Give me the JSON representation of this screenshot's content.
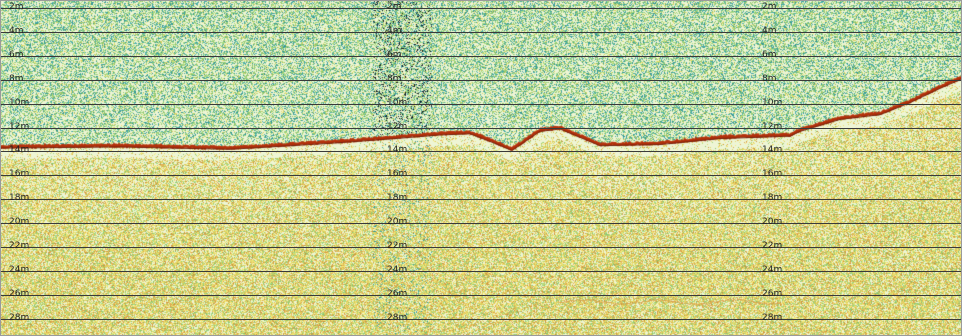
{
  "window": {
    "title": ""
  },
  "echogram": {
    "depth_unit": "m",
    "depth_labels": [
      "2m",
      "4m",
      "6m",
      "8m",
      "10m",
      "12m",
      "14m",
      "16m",
      "18m",
      "20m",
      "22m",
      "24m",
      "26m",
      "28m"
    ],
    "label_columns": 3,
    "colors": {
      "water_green": "#9bd07a",
      "water_teal": "#3fa3a0",
      "sediment_yellow": "#e6d96a",
      "sediment_orange": "#d9a24a",
      "bottom_trace": "#b5310b",
      "bottom_trace_dark": "#6e1a06",
      "gridline": "#3a3a3a",
      "background": "#eef5d5"
    },
    "bottom_profile_m": [
      [
        0,
        13.6
      ],
      [
        120,
        13.5
      ],
      [
        230,
        13.7
      ],
      [
        330,
        13.2
      ],
      [
        380,
        12.9
      ],
      [
        440,
        12.5
      ],
      [
        470,
        12.4
      ],
      [
        495,
        13.2
      ],
      [
        512,
        13.8
      ],
      [
        540,
        12.2
      ],
      [
        560,
        12.0
      ],
      [
        600,
        13.4
      ],
      [
        660,
        13.3
      ],
      [
        720,
        12.8
      ],
      [
        790,
        12.6
      ],
      [
        800,
        12.2
      ],
      [
        840,
        11.2
      ],
      [
        880,
        10.8
      ],
      [
        910,
        9.8
      ],
      [
        940,
        8.6
      ],
      [
        962,
        7.8
      ]
    ]
  }
}
